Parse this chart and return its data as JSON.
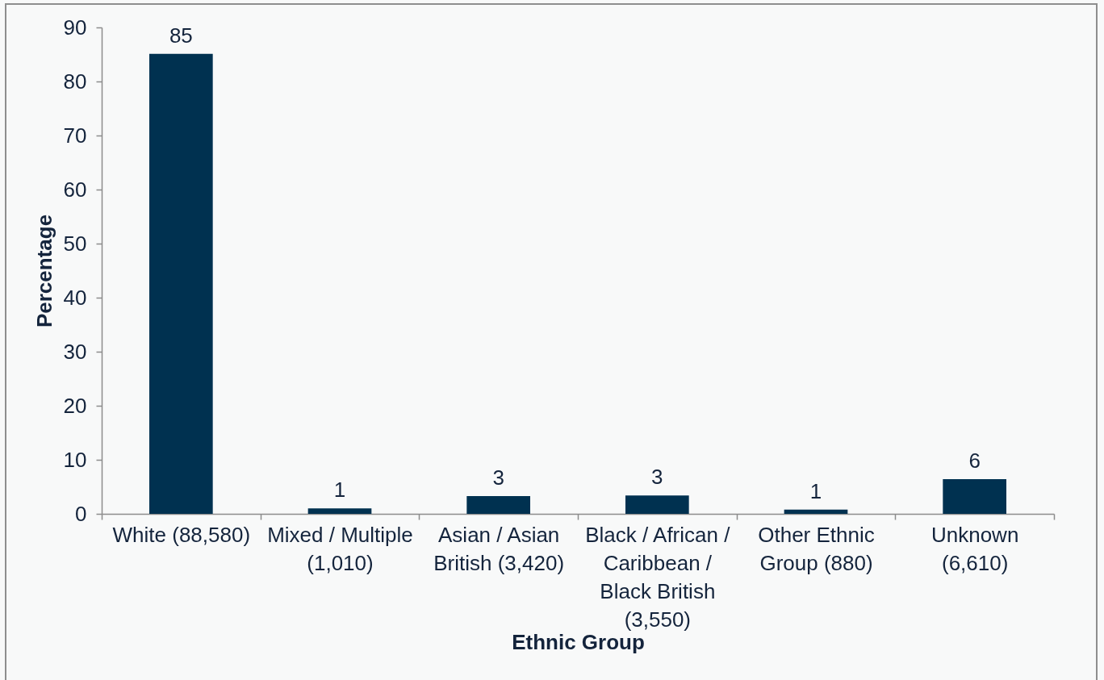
{
  "chart_data": {
    "type": "bar",
    "xlabel": "Ethnic Group",
    "ylabel": "Percentage",
    "categories": [
      "White (88,580)",
      "Mixed / Multiple (1,010)",
      "Asian / Asian British (3,420)",
      "Black / African / Caribbean / Black British (3,550)",
      "Other Ethnic Group (880)",
      "Unknown (6,610)"
    ],
    "values": [
      85.1,
      1.0,
      3.3,
      3.4,
      0.8,
      6.4
    ],
    "value_labels": [
      "85",
      "1",
      "3",
      "3",
      "1",
      "6"
    ],
    "color": "#003150",
    "ylim": [
      0,
      90
    ],
    "yticks": [
      0,
      10,
      20,
      30,
      40,
      50,
      60,
      70,
      80,
      90
    ]
  }
}
